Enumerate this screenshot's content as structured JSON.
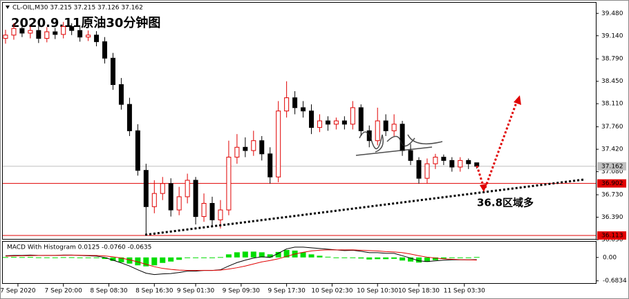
{
  "chart_data": [
    {
      "type": "candlestick",
      "title": "CL-OIL,M30  37.215 37.215 37.126 37.162",
      "subtitle": "2020.9.11原油30分钟图",
      "annotation": "36.8区域多",
      "up_color": "#e00000",
      "down_color": "#000000",
      "open": [
        39.1,
        39.15,
        39.25,
        39.18,
        39.22,
        39.1,
        39.2,
        39.16,
        39.28,
        39.22,
        39.12,
        39.15,
        39.05,
        38.8,
        38.4,
        38.1,
        37.7,
        37.1,
        36.55,
        36.75,
        36.9,
        36.5,
        36.7,
        36.95,
        36.4,
        36.6,
        36.35,
        36.5,
        37.3,
        37.45,
        37.4,
        37.55,
        37.35,
        37.0,
        38.0,
        38.2,
        38.05,
        38.0,
        37.75,
        37.85,
        37.8,
        37.85,
        37.8,
        38.05,
        37.7,
        37.55,
        37.85,
        37.7,
        37.8,
        37.4,
        37.25,
        36.98,
        37.2,
        37.3,
        37.25,
        37.15,
        37.25,
        37.215
      ],
      "high": [
        39.23,
        39.33,
        39.31,
        39.28,
        39.3,
        39.27,
        39.26,
        39.35,
        39.33,
        39.28,
        39.22,
        39.21,
        39.12,
        38.88,
        38.5,
        38.2,
        37.8,
        37.2,
        36.95,
        37.0,
        36.98,
        36.85,
        37.05,
        37.0,
        36.75,
        36.7,
        36.65,
        37.55,
        37.65,
        37.6,
        37.7,
        37.62,
        37.45,
        38.15,
        38.45,
        38.3,
        38.15,
        38.1,
        37.95,
        37.92,
        37.9,
        37.92,
        38.15,
        38.1,
        37.78,
        38.05,
        37.95,
        37.95,
        37.85,
        37.5,
        37.3,
        37.28,
        37.35,
        37.34,
        37.3,
        37.3,
        37.28,
        37.215
      ],
      "low": [
        39.02,
        39.08,
        39.12,
        39.1,
        39.03,
        39.04,
        39.09,
        39.1,
        39.15,
        39.05,
        39.06,
        38.98,
        38.72,
        38.32,
        38.02,
        37.62,
        37.02,
        36.12,
        36.45,
        36.65,
        36.4,
        36.42,
        36.6,
        36.28,
        36.32,
        36.25,
        36.22,
        36.42,
        37.2,
        37.3,
        37.32,
        37.25,
        36.9,
        36.92,
        37.9,
        37.95,
        37.9,
        37.65,
        37.68,
        37.7,
        37.72,
        37.72,
        37.72,
        37.62,
        37.45,
        37.48,
        37.62,
        37.62,
        37.32,
        37.18,
        36.9,
        36.9,
        37.12,
        37.18,
        37.08,
        37.08,
        37.12,
        37.126
      ],
      "close": [
        39.15,
        39.25,
        39.18,
        39.22,
        39.1,
        39.2,
        39.16,
        39.28,
        39.22,
        39.12,
        39.15,
        39.05,
        38.8,
        38.4,
        38.1,
        37.7,
        37.1,
        36.55,
        36.75,
        36.9,
        36.5,
        36.7,
        36.95,
        36.4,
        36.6,
        36.35,
        36.5,
        37.3,
        37.45,
        37.4,
        37.55,
        37.35,
        37.0,
        38.0,
        38.2,
        38.05,
        38.0,
        37.75,
        37.85,
        37.8,
        37.85,
        37.8,
        38.05,
        37.7,
        37.55,
        37.85,
        37.7,
        37.8,
        37.4,
        37.25,
        36.98,
        37.2,
        37.3,
        37.25,
        37.15,
        37.25,
        37.2,
        37.162
      ],
      "ylim": [
        36.04,
        39.64
      ],
      "yticks": [
        {
          "value": 39.48,
          "label": "39.480"
        },
        {
          "value": 39.14,
          "label": "39.140"
        },
        {
          "value": 38.79,
          "label": "38.790"
        },
        {
          "value": 38.45,
          "label": "38.450"
        },
        {
          "value": 38.11,
          "label": "38.110"
        },
        {
          "value": 37.76,
          "label": "37.760"
        },
        {
          "value": 37.42,
          "label": "37.420"
        },
        {
          "value": 37.08,
          "label": "37.080"
        },
        {
          "value": 36.73,
          "label": "36.730"
        },
        {
          "value": 36.39,
          "label": "36.390"
        },
        {
          "value": 36.05,
          "label": "36.050"
        }
      ],
      "levels": [
        {
          "value": 37.162,
          "color": "#c0c0c0",
          "text_color": "#000000"
        },
        {
          "value": 36.902,
          "color": "#e00000",
          "text_color": "#ffffff"
        },
        {
          "value": 36.113,
          "color": "#e00000",
          "text_color": "#ffffff"
        }
      ],
      "xticks": [
        {
          "value": 1.5,
          "label": "7 Sep 2020"
        },
        {
          "value": 7,
          "label": "7 Sep 20:00"
        },
        {
          "value": 12.5,
          "label": "8 Sep 08:30"
        },
        {
          "value": 18,
          "label": "8 Sep 16:30"
        },
        {
          "value": 23,
          "label": "9 Sep 01:30"
        },
        {
          "value": 28.5,
          "label": "9 Sep 09:30"
        },
        {
          "value": 34,
          "label": "9 Sep 17:30"
        },
        {
          "value": 39.5,
          "label": "10 Sep 02:30"
        },
        {
          "value": 45,
          "label": "10 Sep 10:30"
        },
        {
          "value": 50,
          "label": "10 Sep 18:30"
        },
        {
          "value": 55.5,
          "label": "11 Sep 03:30"
        }
      ]
    },
    {
      "type": "macd",
      "title": "MACD With Histogram 0.0125 -0.0760 -0.0635",
      "ylim": [
        -0.75,
        0.46
      ],
      "yticks": [
        {
          "value": 0,
          "label": "0.00"
        },
        -0.6834
      ],
      "series": [
        {
          "style": "bar",
          "color": "#00dd00",
          "values": [
            0.01,
            0.015,
            0.01,
            0.015,
            0.003,
            0.002,
            0.001,
            0.008,
            0.006,
            -0.003,
            -0.01,
            -0.016,
            -0.045,
            -0.1,
            -0.14,
            -0.18,
            -0.23,
            -0.26,
            -0.23,
            -0.16,
            -0.12,
            -0.07,
            -0.02,
            -0.02,
            0,
            0,
            0.01,
            0.09,
            0.15,
            0.17,
            0.17,
            0.15,
            0.09,
            0.16,
            0.22,
            0.2,
            0.15,
            0.09,
            0.05,
            0.02,
            0,
            -0.02,
            -0.01,
            -0.03,
            -0.06,
            -0.05,
            -0.05,
            -0.04,
            -0.09,
            -0.12,
            -0.15,
            -0.13,
            -0.08,
            -0.04,
            -0.015,
            -0.005,
            0,
            0.0125
          ]
        },
        {
          "style": "line",
          "color": "#000000",
          "values": [
            0.05,
            0.06,
            0.06,
            0.07,
            0.06,
            0.06,
            0.06,
            0.07,
            0.07,
            0.06,
            0.05,
            0.04,
            0.0,
            -0.08,
            -0.16,
            -0.25,
            -0.36,
            -0.46,
            -0.5,
            -0.48,
            -0.47,
            -0.44,
            -0.4,
            -0.4,
            -0.38,
            -0.38,
            -0.36,
            -0.25,
            -0.15,
            -0.08,
            -0.02,
            0.02,
            0.0,
            0.12,
            0.25,
            0.3,
            0.3,
            0.28,
            0.26,
            0.24,
            0.22,
            0.2,
            0.21,
            0.18,
            0.14,
            0.14,
            0.12,
            0.12,
            0.05,
            -0.02,
            -0.1,
            -0.12,
            -0.1,
            -0.08,
            -0.07,
            -0.07,
            -0.07,
            -0.0635
          ]
        },
        {
          "style": "line",
          "color": "#e00000",
          "values": [
            0.04,
            0.045,
            0.05,
            0.055,
            0.057,
            0.058,
            0.059,
            0.062,
            0.064,
            0.063,
            0.06,
            0.056,
            0.045,
            0.02,
            -0.02,
            -0.07,
            -0.13,
            -0.2,
            -0.27,
            -0.32,
            -0.35,
            -0.37,
            -0.38,
            -0.38,
            -0.38,
            -0.38,
            -0.37,
            -0.34,
            -0.3,
            -0.25,
            -0.19,
            -0.13,
            -0.09,
            -0.04,
            0.03,
            0.1,
            0.15,
            0.19,
            0.21,
            0.22,
            0.22,
            0.22,
            0.22,
            0.21,
            0.2,
            0.19,
            0.17,
            0.16,
            0.14,
            0.1,
            0.05,
            0.01,
            -0.02,
            -0.04,
            -0.055,
            -0.065,
            -0.07,
            -0.076
          ]
        }
      ]
    }
  ]
}
